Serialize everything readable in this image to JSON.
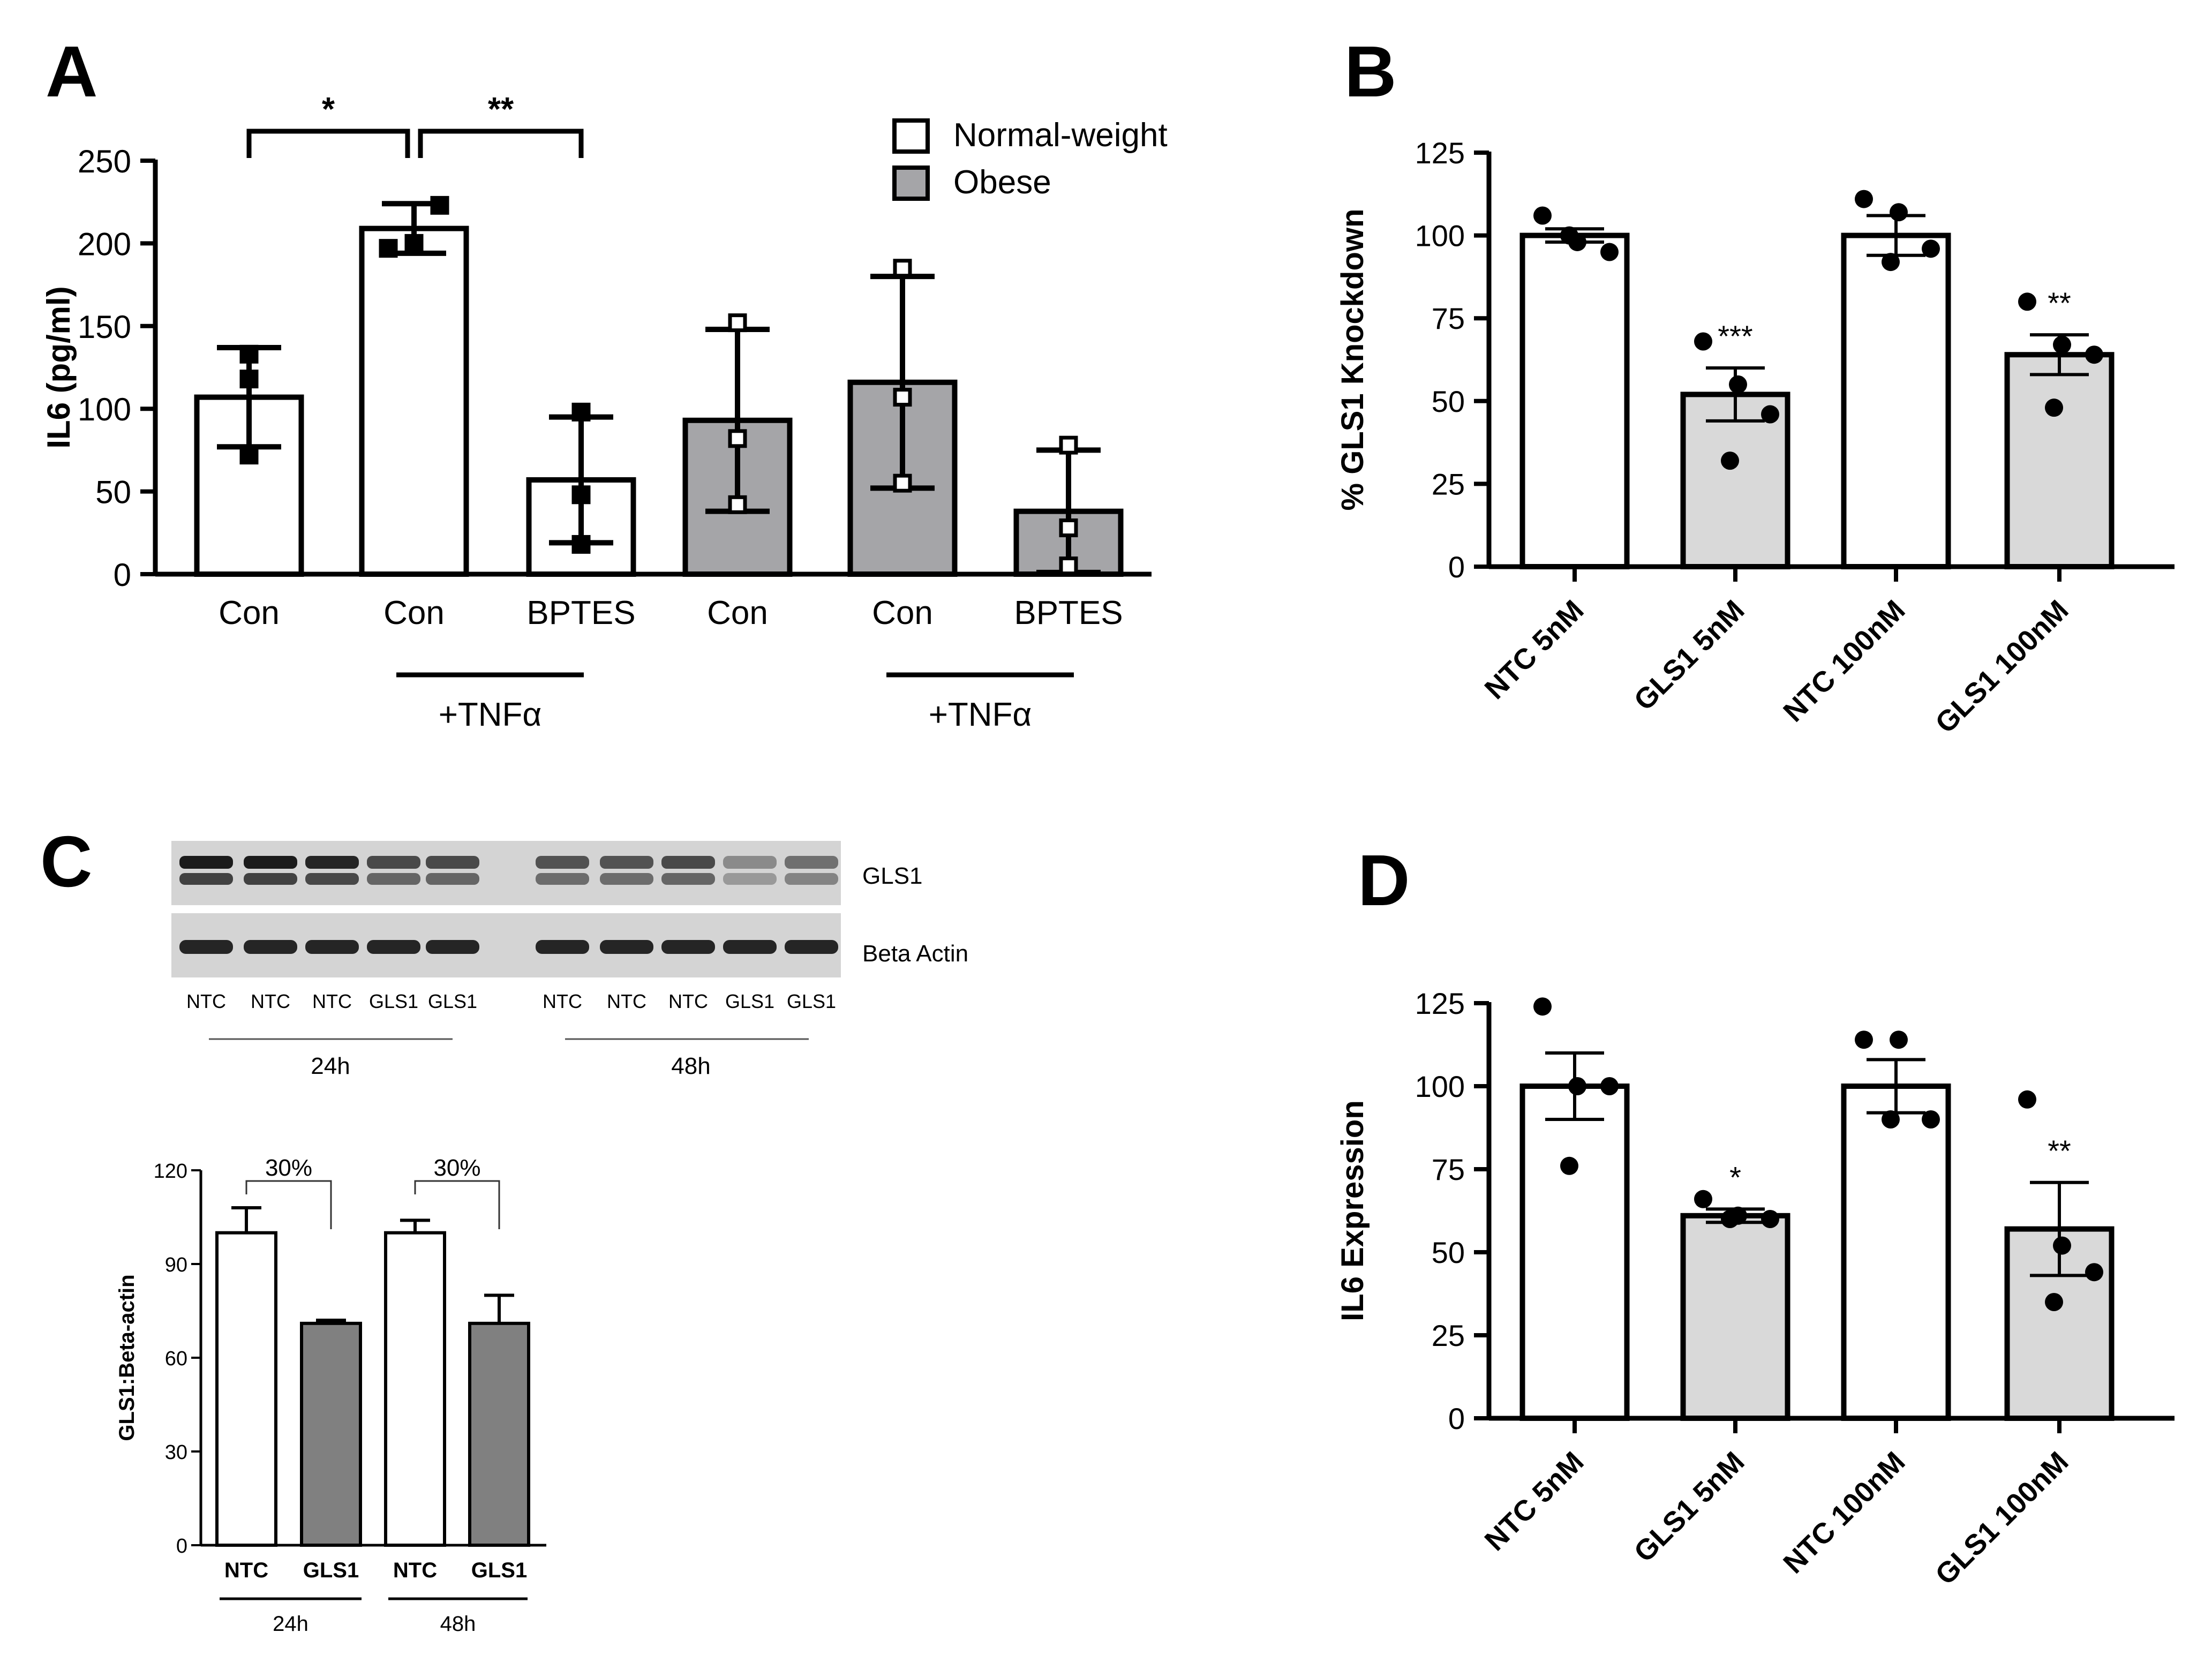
{
  "colors": {
    "normal_bar": "#ffffff",
    "obese_bar": "#a5a5a8",
    "light_gray_bar": "#d9d9d9",
    "dark_gray_bar": "#808080",
    "ink": "#000000",
    "blot_bg": "#d4d4d4",
    "blot_band": "#1b1b1b"
  },
  "chart_data": [
    {
      "panel": "A",
      "type": "bar",
      "ylabel": "IL6 (pg/ml)",
      "ylim": [
        0,
        250
      ],
      "yticks": [
        0,
        50,
        100,
        150,
        200,
        250
      ],
      "categories": [
        "Con",
        "Con",
        "BPTES",
        "Con",
        "Con",
        "BPTES"
      ],
      "groups": [
        "normal",
        "normal",
        "normal",
        "obese",
        "obese",
        "obese"
      ],
      "values": [
        107,
        209,
        57,
        93,
        116,
        38
      ],
      "errors": [
        30,
        15,
        38,
        55,
        64,
        37
      ],
      "points": [
        [
          72,
          118,
          133
        ],
        [
          197,
          200,
          223
        ],
        [
          18,
          48,
          98
        ],
        [
          42,
          82,
          152
        ],
        [
          55,
          107,
          185
        ],
        [
          5,
          28,
          78
        ]
      ],
      "group_labels": [
        "+TNFα",
        "+TNFα"
      ],
      "significance": [
        {
          "from": 0,
          "to": 1,
          "label": "*"
        },
        {
          "from": 1,
          "to": 2,
          "label": "**"
        }
      ],
      "legend": [
        {
          "label": "Normal-weight",
          "group": "normal"
        },
        {
          "label": "Obese",
          "group": "obese"
        }
      ],
      "legend_position": "top-right"
    },
    {
      "panel": "B",
      "type": "bar",
      "ylabel": "% GLS1 Knockdown",
      "ylim": [
        0,
        125
      ],
      "yticks": [
        0,
        25,
        50,
        75,
        100,
        125
      ],
      "categories": [
        "NTC 5nM",
        "GLS1 5nM",
        "NTC 100nM",
        "GLS1 100nM"
      ],
      "fills": [
        "white",
        "light",
        "white",
        "light"
      ],
      "values": [
        100,
        52,
        100,
        64
      ],
      "errors": [
        2,
        8,
        6,
        6
      ],
      "points": [
        [
          106,
          98,
          95,
          100
        ],
        [
          68,
          55,
          46,
          32
        ],
        [
          111,
          107,
          96,
          92
        ],
        [
          80,
          67,
          64,
          48
        ]
      ],
      "annotations": [
        "",
        "***",
        "",
        "**"
      ]
    },
    {
      "panel": "C",
      "type": "bar",
      "ylabel": "GLS1:Beta-actin",
      "ylim": [
        0,
        120
      ],
      "yticks": [
        0,
        30,
        60,
        90,
        120
      ],
      "categories": [
        "NTC",
        "GLS1",
        "NTC",
        "GLS1"
      ],
      "fills": [
        "white",
        "dark",
        "white",
        "dark"
      ],
      "values": [
        100,
        71,
        100,
        71
      ],
      "errors": [
        8,
        1,
        4,
        9
      ],
      "group_labels": [
        "24h",
        "48h"
      ],
      "brackets": [
        "30%",
        "30%"
      ]
    },
    {
      "panel": "D",
      "type": "bar",
      "ylabel": "IL6 Expression",
      "ylim": [
        0,
        125
      ],
      "yticks": [
        0,
        25,
        50,
        75,
        100,
        125
      ],
      "categories": [
        "NTC 5nM",
        "GLS1 5nM",
        "NTC 100nM",
        "GLS1 100nM"
      ],
      "fills": [
        "white",
        "light",
        "white",
        "light"
      ],
      "values": [
        100,
        61,
        100,
        57
      ],
      "errors": [
        10,
        2,
        8,
        14
      ],
      "points": [
        [
          124,
          100,
          100,
          76
        ],
        [
          66,
          61,
          60,
          60
        ],
        [
          114,
          114,
          90,
          90
        ],
        [
          96,
          52,
          44,
          35
        ]
      ],
      "annotations": [
        "",
        "*",
        "",
        "**"
      ]
    }
  ],
  "panels": {
    "a": "A",
    "b": "B",
    "c": "C",
    "d": "D"
  },
  "blot": {
    "proteins": [
      "GLS1",
      "Beta Actin"
    ],
    "lanes": [
      "NTC",
      "NTC",
      "NTC",
      "GLS1",
      "GLS1",
      "NTC",
      "NTC",
      "NTC",
      "GLS1",
      "GLS1"
    ],
    "timepoints": [
      "24h",
      "48h"
    ]
  }
}
